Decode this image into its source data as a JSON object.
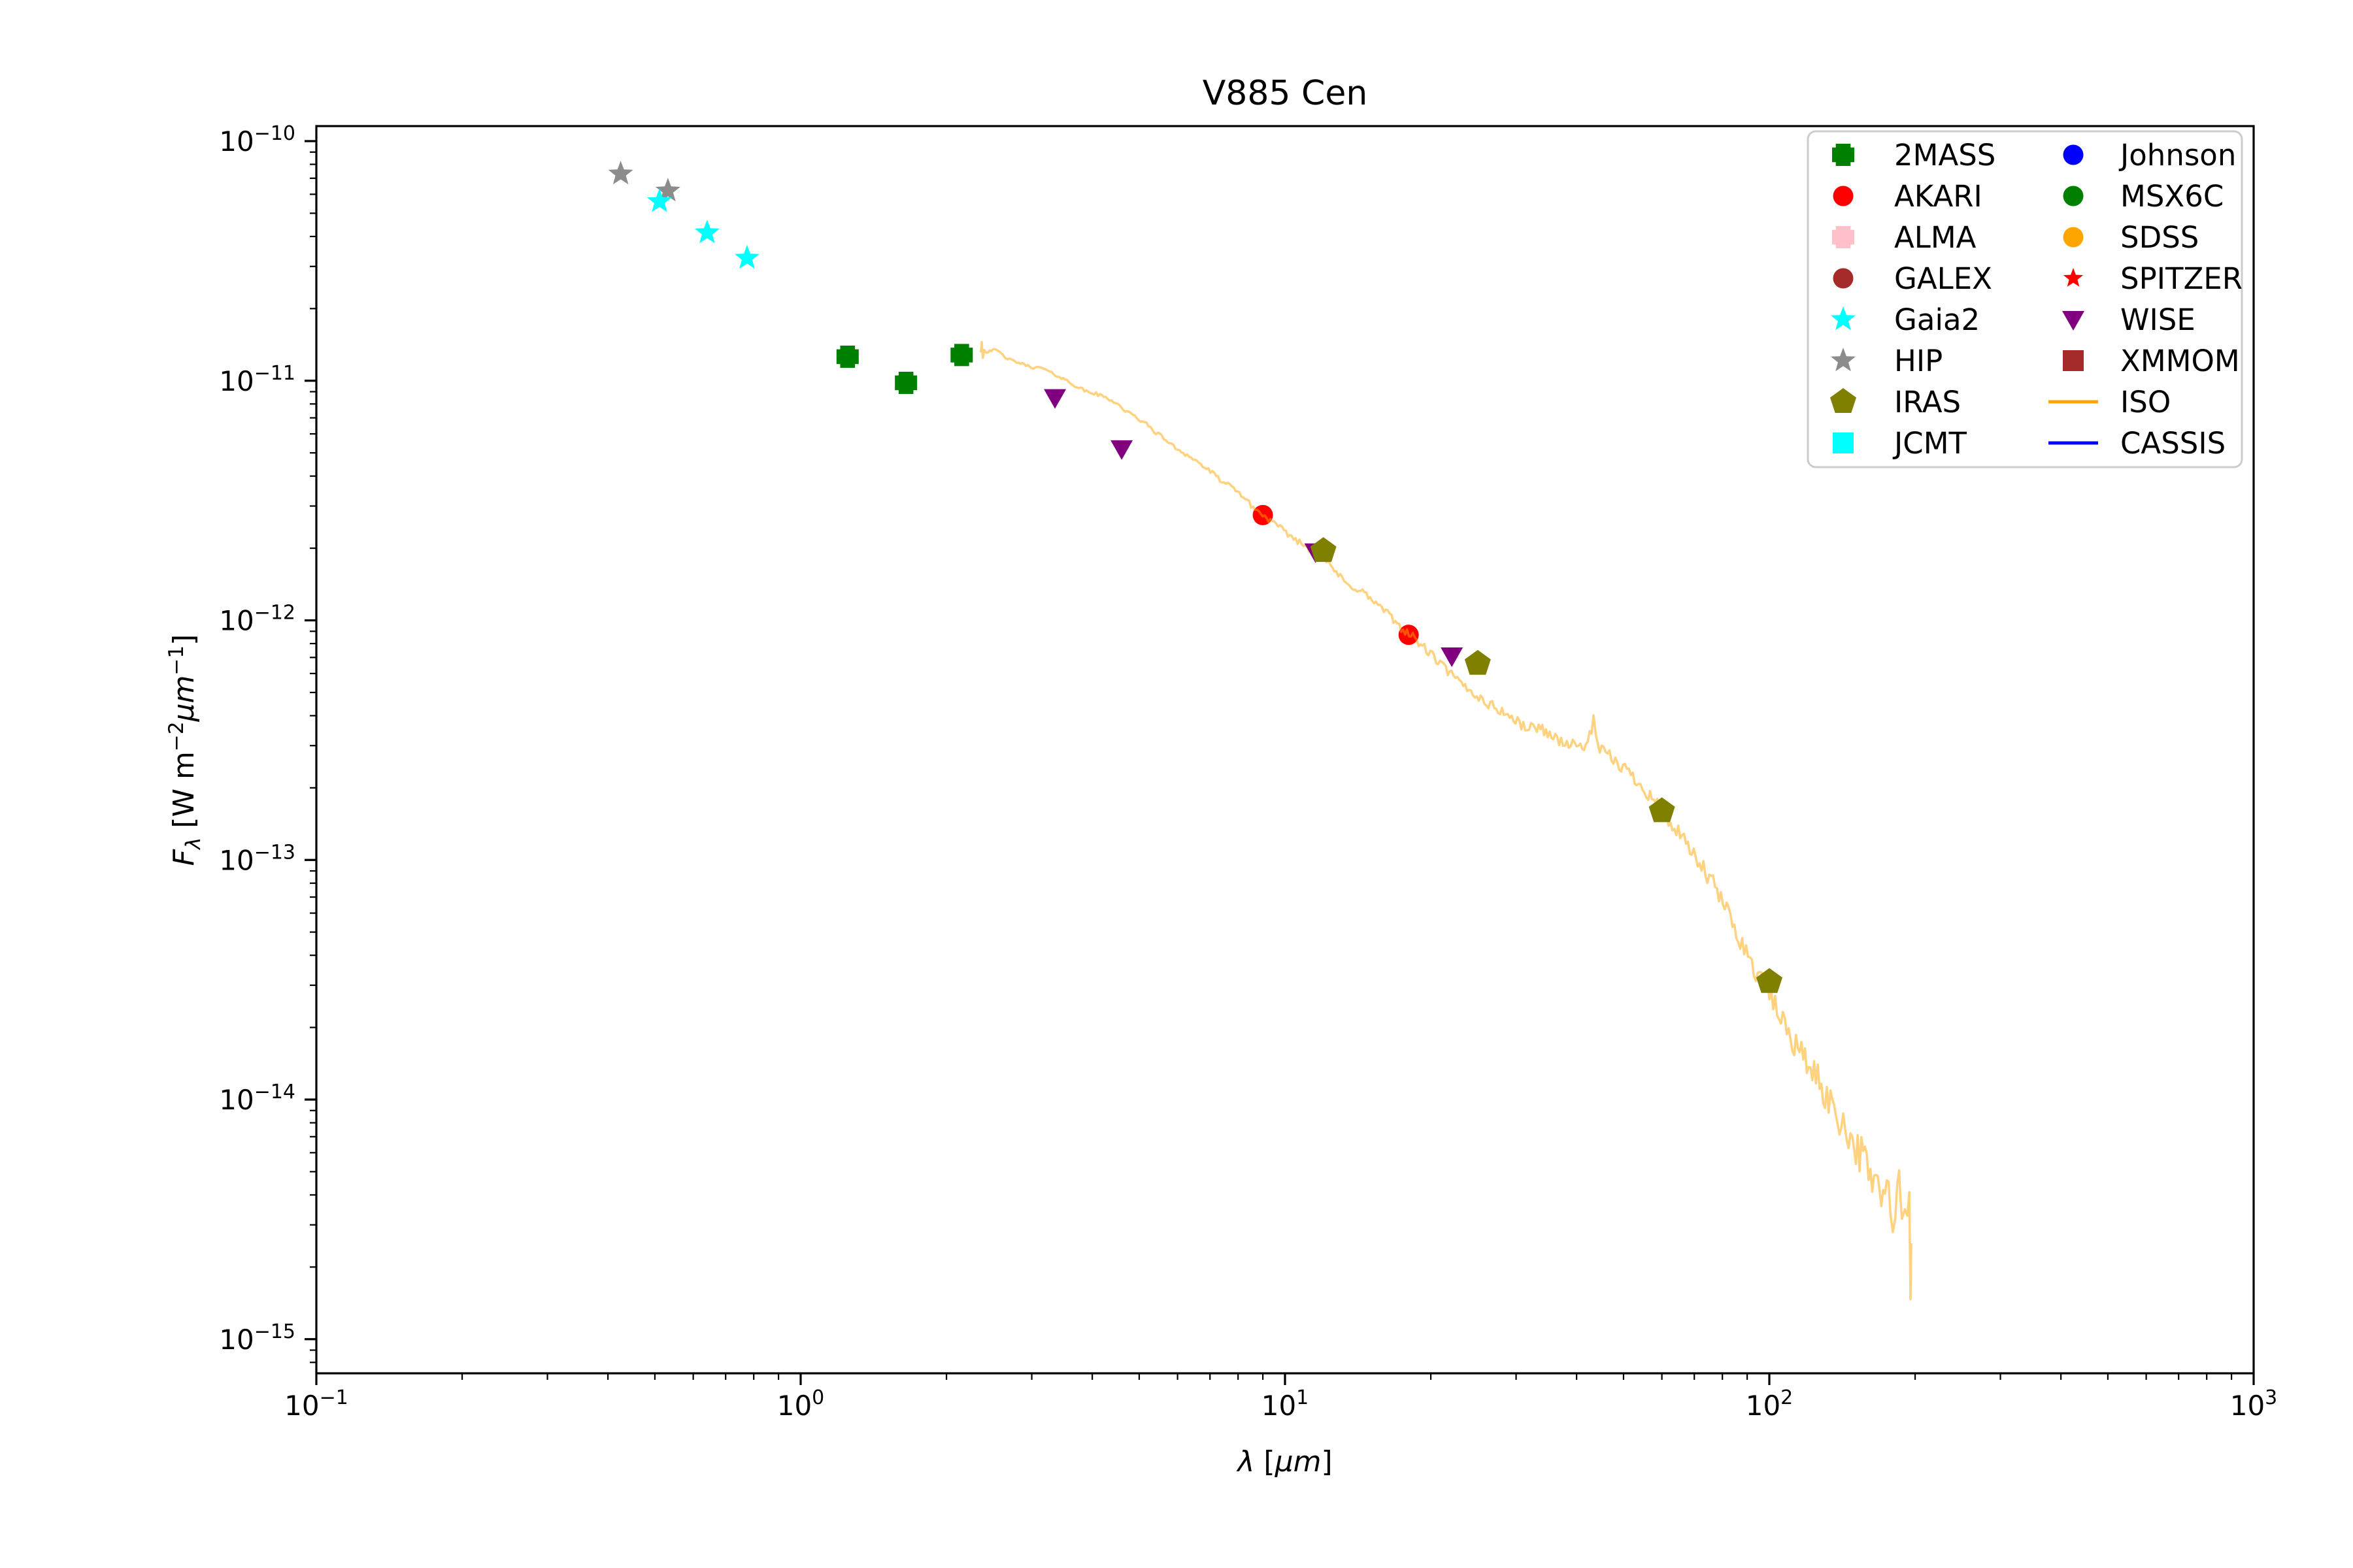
{
  "title": "V885 Cen",
  "axes": {
    "xlabel_segments": [
      {
        "t": "λ",
        "i": 1
      },
      {
        "t": " [",
        "i": 0
      },
      {
        "t": "μm",
        "i": 1
      },
      {
        "t": "]",
        "i": 0
      }
    ],
    "ylabel_segments": [
      {
        "t": "F",
        "i": 1
      },
      {
        "t": "λ",
        "i": 1,
        "v": "sub"
      },
      {
        "t": " [W m",
        "i": 0
      },
      {
        "t": "−2",
        "i": 0,
        "v": "sup"
      },
      {
        "t": "μm",
        "i": 1
      },
      {
        "t": "−1",
        "i": 0,
        "v": "sup"
      },
      {
        "t": "]",
        "i": 0
      }
    ],
    "x_tick_exponents": [
      -1,
      0,
      1,
      2,
      3
    ],
    "y_tick_exponents": [
      -10,
      -11,
      -12,
      -13,
      -14,
      -15
    ]
  },
  "chart_data": {
    "type": "scatter",
    "title": "V885 Cen",
    "xlabel": "lambda [micrometer]",
    "ylabel": "F_lambda [W m^-2 micrometer^-1]",
    "x_scale": "log",
    "y_scale": "log",
    "xlim": [
      0.1,
      1000
    ],
    "ylim": [
      7.2e-16,
      1.16e-10
    ],
    "grid": false,
    "legend_position": "upper right",
    "draw_order": [
      "HIP",
      "Gaia2",
      "2MASS",
      "AKARI",
      "ISO",
      "WISE",
      "IRAS"
    ],
    "series": [
      {
        "name": "2MASS",
        "marker": "plus",
        "color": "#008000",
        "points": [
          [
            1.25,
            1.26e-11
          ],
          [
            1.65,
            9.8e-12
          ],
          [
            2.15,
            1.28e-11
          ]
        ]
      },
      {
        "name": "AKARI",
        "marker": "circle",
        "color": "#ff0000",
        "points": [
          [
            9.0,
            2.75e-12
          ],
          [
            18.0,
            8.7e-13
          ]
        ]
      },
      {
        "name": "ALMA",
        "marker": "plus",
        "color": "#ffc0cb",
        "points": []
      },
      {
        "name": "GALEX",
        "marker": "circle",
        "color": "#a52a2a",
        "points": []
      },
      {
        "name": "Gaia2",
        "marker": "star",
        "color": "#00ffff",
        "points": [
          [
            0.511,
            5.6e-11
          ],
          [
            0.641,
            4.15e-11
          ],
          [
            0.775,
            3.25e-11
          ]
        ]
      },
      {
        "name": "HIP",
        "marker": "star",
        "color": "#8c8c8c",
        "points": [
          [
            0.425,
            7.3e-11
          ],
          [
            0.532,
            6.2e-11
          ]
        ]
      },
      {
        "name": "IRAS",
        "marker": "pentagon",
        "color": "#808000",
        "points": [
          [
            12.0,
            1.95e-12
          ],
          [
            25.0,
            6.6e-13
          ],
          [
            60.0,
            1.6e-13
          ],
          [
            100.0,
            3.1e-14
          ]
        ]
      },
      {
        "name": "JCMT",
        "marker": "square",
        "color": "#00ffff",
        "points": []
      },
      {
        "name": "Johnson",
        "marker": "circle",
        "color": "#0000ff",
        "points": []
      },
      {
        "name": "MSX6C",
        "marker": "circle",
        "color": "#008000",
        "points": []
      },
      {
        "name": "SDSS",
        "marker": "circle",
        "color": "#ffa500",
        "points": []
      },
      {
        "name": "SPITZER",
        "marker": "star_small",
        "color": "#ff0000",
        "points": []
      },
      {
        "name": "WISE",
        "marker": "triangle_down",
        "color": "#800080",
        "points": [
          [
            3.35,
            8.5e-12
          ],
          [
            4.6,
            5.2e-12
          ],
          [
            11.56,
            1.93e-12
          ],
          [
            22.1,
            7.1e-13
          ]
        ]
      },
      {
        "name": "XMMOM",
        "marker": "square",
        "color": "#a52a2a",
        "points": []
      },
      {
        "name": "ISO",
        "marker": "line",
        "color": "#ffa500",
        "line_opacity": 0.5,
        "points": []
      },
      {
        "name": "CASSIS",
        "marker": "line",
        "color": "#0000ff",
        "line_opacity": 1.0,
        "points": []
      }
    ],
    "iso_curve_log10": [
      [
        0.372,
        -10.88
      ],
      [
        0.374,
        -10.835
      ],
      [
        0.376,
        -10.905
      ],
      [
        0.379,
        -10.87
      ],
      [
        0.383,
        -10.882
      ],
      [
        0.39,
        -10.874
      ],
      [
        0.4,
        -10.872
      ],
      [
        0.41,
        -10.878
      ],
      [
        0.42,
        -10.9
      ],
      [
        0.435,
        -10.915
      ],
      [
        0.45,
        -10.925
      ],
      [
        0.465,
        -10.935
      ],
      [
        0.48,
        -10.945
      ],
      [
        0.5,
        -10.947
      ],
      [
        0.51,
        -10.96
      ],
      [
        0.53,
        -10.98
      ],
      [
        0.55,
        -11.0
      ],
      [
        0.57,
        -11.025
      ],
      [
        0.59,
        -11.045
      ],
      [
        0.61,
        -11.055
      ],
      [
        0.63,
        -11.07
      ],
      [
        0.65,
        -11.09
      ],
      [
        0.67,
        -11.125
      ],
      [
        0.69,
        -11.15
      ],
      [
        0.71,
        -11.175
      ],
      [
        0.73,
        -11.21
      ],
      [
        0.75,
        -11.24
      ],
      [
        0.77,
        -11.275
      ],
      [
        0.79,
        -11.3
      ],
      [
        0.81,
        -11.325
      ],
      [
        0.83,
        -11.355
      ],
      [
        0.85,
        -11.385
      ],
      [
        0.87,
        -11.42
      ],
      [
        0.89,
        -11.445
      ],
      [
        0.91,
        -11.475
      ],
      [
        0.93,
        -11.52
      ],
      [
        0.95,
        -11.555
      ],
      [
        0.97,
        -11.585
      ],
      [
        0.99,
        -11.615
      ],
      [
        1.01,
        -11.645
      ],
      [
        1.03,
        -11.675
      ],
      [
        1.05,
        -11.7
      ],
      [
        1.07,
        -11.72
      ],
      [
        1.09,
        -11.765
      ],
      [
        1.11,
        -11.81
      ],
      [
        1.13,
        -11.857
      ],
      [
        1.145,
        -11.863
      ],
      [
        1.16,
        -11.88
      ],
      [
        1.18,
        -11.917
      ],
      [
        1.2,
        -11.95
      ],
      [
        1.22,
        -11.99
      ],
      [
        1.24,
        -12.03
      ],
      [
        1.26,
        -12.063
      ],
      [
        1.28,
        -12.1
      ],
      [
        1.3,
        -12.14
      ],
      [
        1.32,
        -12.18
      ],
      [
        1.34,
        -12.22
      ],
      [
        1.36,
        -12.26
      ],
      [
        1.38,
        -12.29
      ],
      [
        1.4,
        -12.32
      ],
      [
        1.42,
        -12.35
      ],
      [
        1.44,
        -12.37
      ],
      [
        1.46,
        -12.395
      ],
      [
        1.48,
        -12.425
      ],
      [
        1.5,
        -12.45
      ],
      [
        1.52,
        -12.445
      ],
      [
        1.535,
        -12.458
      ],
      [
        1.55,
        -12.48
      ],
      [
        1.57,
        -12.505
      ],
      [
        1.59,
        -12.52
      ],
      [
        1.61,
        -12.525
      ],
      [
        1.625,
        -12.515
      ],
      [
        1.633,
        -12.46
      ],
      [
        1.637,
        -12.39
      ],
      [
        1.642,
        -12.5
      ],
      [
        1.65,
        -12.54
      ],
      [
        1.67,
        -12.57
      ],
      [
        1.69,
        -12.6
      ],
      [
        1.71,
        -12.635
      ],
      [
        1.73,
        -12.675
      ],
      [
        1.75,
        -12.72
      ],
      [
        1.765,
        -12.755
      ],
      [
        1.78,
        -12.8
      ],
      [
        1.8,
        -12.857
      ],
      [
        1.82,
        -12.915
      ],
      [
        1.84,
        -12.97
      ],
      [
        1.86,
        -13.03
      ],
      [
        1.88,
        -13.09
      ],
      [
        1.9,
        -13.16
      ],
      [
        1.92,
        -13.245
      ],
      [
        1.94,
        -13.33
      ],
      [
        1.96,
        -13.42
      ],
      [
        1.98,
        -13.49
      ],
      [
        2.0,
        -13.56
      ],
      [
        2.02,
        -13.645
      ],
      [
        2.04,
        -13.72
      ],
      [
        2.055,
        -13.775
      ],
      [
        2.07,
        -13.82
      ],
      [
        2.085,
        -13.865
      ],
      [
        2.1,
        -13.92
      ],
      [
        2.115,
        -13.975
      ],
      [
        2.13,
        -14.03
      ],
      [
        2.145,
        -14.08
      ],
      [
        2.16,
        -14.12
      ],
      [
        2.175,
        -14.18
      ],
      [
        2.19,
        -14.24
      ],
      [
        2.205,
        -14.29
      ],
      [
        2.22,
        -14.34
      ],
      [
        2.235,
        -14.4
      ],
      [
        2.25,
        -14.44
      ],
      [
        2.26,
        -14.49
      ],
      [
        2.268,
        -14.38
      ],
      [
        2.274,
        -14.52
      ],
      [
        2.28,
        -14.42
      ],
      [
        2.285,
        -14.55
      ],
      [
        2.289,
        -14.46
      ],
      [
        2.2915,
        -14.9
      ],
      [
        2.293,
        -14.6
      ]
    ],
    "iso_noise_profile": [
      [
        0.372,
        0.004
      ],
      [
        0.9,
        0.01
      ],
      [
        1.3,
        0.02
      ],
      [
        1.6,
        0.024
      ],
      [
        1.8,
        0.034
      ],
      [
        2.0,
        0.05
      ],
      [
        2.15,
        0.075
      ],
      [
        2.25,
        0.105
      ],
      [
        2.293,
        0.12
      ]
    ]
  },
  "legend": {
    "col1": [
      "2MASS",
      "AKARI",
      "ALMA",
      "GALEX",
      "Gaia2",
      "HIP",
      "IRAS",
      "JCMT"
    ],
    "col2": [
      "Johnson",
      "MSX6C",
      "SDSS",
      "SPITZER",
      "WISE",
      "XMMOM",
      "ISO",
      "CASSIS"
    ]
  }
}
